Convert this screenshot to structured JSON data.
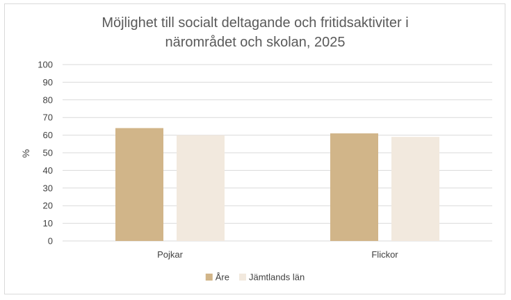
{
  "chart_data": {
    "type": "bar",
    "title_lines": [
      "Möjlighet till socialt deltagande och fritidsaktiviter i",
      "närområdet och skolan, 2025"
    ],
    "xlabel": "",
    "ylabel": "%",
    "ylim": [
      0,
      100
    ],
    "yticks": [
      "0",
      "10",
      "20",
      "30",
      "40",
      "50",
      "60",
      "70",
      "80",
      "90",
      "100"
    ],
    "categories": [
      "Pojkar",
      "Flickor"
    ],
    "series": [
      {
        "name": "Åre",
        "color": "#d1b589",
        "values": [
          64,
          61
        ]
      },
      {
        "name": "Jämtlands län",
        "color": "#f2e9de",
        "values": [
          60,
          59
        ]
      }
    ],
    "grid": true,
    "legend": "bottom"
  }
}
